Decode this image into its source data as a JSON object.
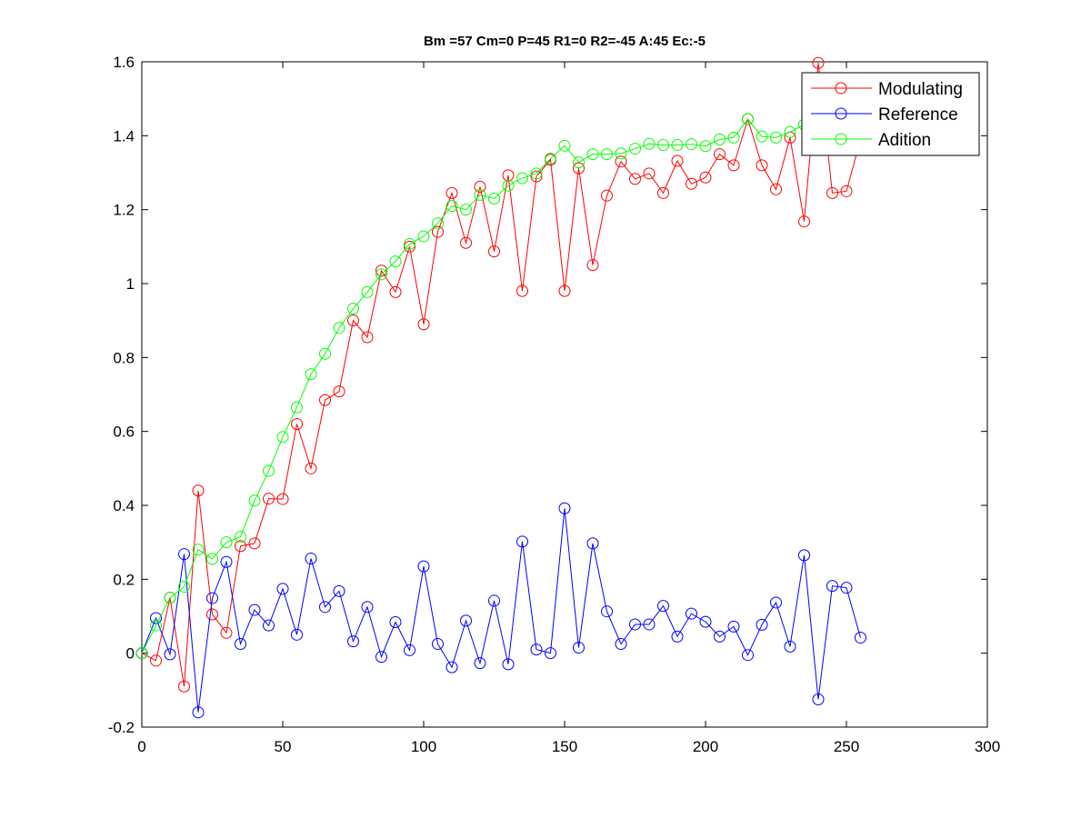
{
  "chart_data": {
    "type": "line",
    "title": "Bm =57  Cm=0  P=45  R1=0  R2=-45  A:45  Ec:-5",
    "xlabel": "",
    "ylabel": "",
    "xlim": [
      0,
      300
    ],
    "ylim": [
      -0.2,
      1.6
    ],
    "xticks": [
      0,
      50,
      100,
      150,
      200,
      250,
      300
    ],
    "yticks": [
      -0.2,
      0,
      0.2,
      0.4,
      0.6,
      0.8,
      1.0,
      1.2,
      1.4,
      1.6
    ],
    "xtick_labels": [
      "0",
      "50",
      "100",
      "150",
      "200",
      "250",
      "300"
    ],
    "ytick_labels": [
      "-0.2",
      "0",
      "0.2",
      "0.4",
      "0.6",
      "0.8",
      "1",
      "1.2",
      "1.4",
      "1.6"
    ],
    "grid": false,
    "legend": "top-right",
    "marker": "circle",
    "series": [
      {
        "name": "Modulating",
        "color": "#ff0000",
        "x": [
          0,
          5,
          10,
          15,
          20,
          25,
          30,
          35,
          40,
          45,
          50,
          55,
          60,
          65,
          70,
          75,
          80,
          85,
          90,
          95,
          100,
          105,
          110,
          115,
          120,
          125,
          130,
          135,
          140,
          145,
          150,
          155,
          160,
          165,
          170,
          175,
          180,
          185,
          190,
          195,
          200,
          205,
          210,
          215,
          220,
          225,
          230,
          235,
          240,
          245,
          250,
          255
        ],
        "y": [
          0.0,
          -0.02,
          0.15,
          -0.09,
          0.44,
          0.105,
          0.055,
          0.29,
          0.297,
          0.418,
          0.417,
          0.62,
          0.5,
          0.685,
          0.708,
          0.9,
          0.855,
          1.035,
          0.977,
          1.1,
          0.89,
          1.14,
          1.245,
          1.11,
          1.262,
          1.087,
          1.293,
          0.98,
          1.29,
          1.335,
          0.98,
          1.312,
          1.05,
          1.238,
          1.33,
          1.283,
          1.298,
          1.245,
          1.332,
          1.27,
          1.287,
          1.35,
          1.32,
          1.445,
          1.32,
          1.255,
          1.395,
          1.168,
          1.597,
          1.245,
          1.25,
          1.39
        ]
      },
      {
        "name": "Reference",
        "color": "#0000ff",
        "x": [
          0,
          5,
          10,
          15,
          20,
          25,
          30,
          35,
          40,
          45,
          50,
          55,
          60,
          65,
          70,
          75,
          80,
          85,
          90,
          95,
          100,
          105,
          110,
          115,
          120,
          125,
          130,
          135,
          140,
          145,
          150,
          155,
          160,
          165,
          170,
          175,
          180,
          185,
          190,
          195,
          200,
          205,
          210,
          215,
          220,
          225,
          230,
          235,
          240,
          245,
          250,
          255
        ],
        "y": [
          0.0,
          0.095,
          -0.003,
          0.268,
          -0.16,
          0.149,
          0.247,
          0.025,
          0.117,
          0.075,
          0.174,
          0.05,
          0.256,
          0.125,
          0.168,
          0.032,
          0.125,
          -0.01,
          0.084,
          0.008,
          0.235,
          0.025,
          -0.038,
          0.088,
          -0.027,
          0.142,
          -0.03,
          0.302,
          0.01,
          0.0,
          0.392,
          0.015,
          0.297,
          0.113,
          0.025,
          0.078,
          0.078,
          0.128,
          0.045,
          0.107,
          0.085,
          0.045,
          0.072,
          -0.005,
          0.077,
          0.137,
          0.018,
          0.265,
          -0.125,
          0.182,
          0.177,
          0.042
        ]
      },
      {
        "name": "Adition",
        "color": "#00ff00",
        "x": [
          0,
          5,
          10,
          15,
          20,
          25,
          30,
          35,
          40,
          45,
          50,
          55,
          60,
          65,
          70,
          75,
          80,
          85,
          90,
          95,
          100,
          105,
          110,
          115,
          120,
          125,
          130,
          135,
          140,
          145,
          150,
          155,
          160,
          165,
          170,
          175,
          180,
          185,
          190,
          195,
          200,
          205,
          210,
          215,
          220,
          225,
          230,
          235,
          240,
          245,
          250,
          255
        ],
        "y": [
          0.0,
          0.075,
          0.15,
          0.18,
          0.28,
          0.255,
          0.3,
          0.315,
          0.413,
          0.493,
          0.585,
          0.665,
          0.755,
          0.81,
          0.88,
          0.932,
          0.977,
          1.025,
          1.06,
          1.107,
          1.128,
          1.163,
          1.21,
          1.2,
          1.24,
          1.23,
          1.265,
          1.285,
          1.298,
          1.338,
          1.373,
          1.328,
          1.35,
          1.35,
          1.352,
          1.365,
          1.378,
          1.375,
          1.375,
          1.377,
          1.372,
          1.39,
          1.395,
          1.445,
          1.398,
          1.395,
          1.41,
          1.43,
          1.44,
          1.44,
          1.44,
          1.44
        ]
      }
    ]
  }
}
